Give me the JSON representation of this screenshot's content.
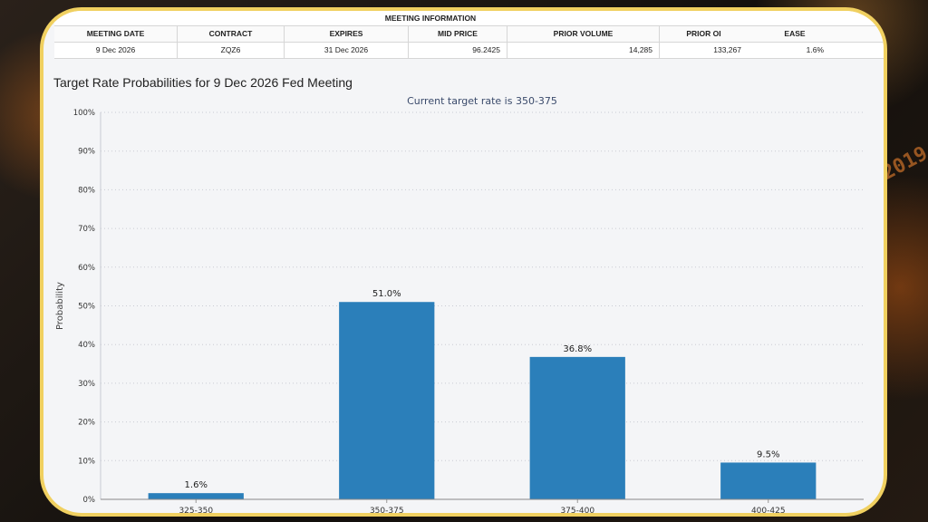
{
  "meeting_info": {
    "title": "MEETING INFORMATION",
    "headers": [
      "MEETING DATE",
      "CONTRACT",
      "EXPIRES",
      "MID PRICE",
      "PRIOR VOLUME",
      "PRIOR OI"
    ],
    "row": [
      "9 Dec 2026",
      "ZQZ6",
      "31 Dec 2026",
      "96.2425",
      "14,285",
      "133,267"
    ]
  },
  "probabilities": {
    "headers": [
      "EASE"
    ],
    "row": [
      "1.6%"
    ]
  },
  "background": {
    "year_text": "2019"
  },
  "chart_data": {
    "type": "bar",
    "title": "Target Rate Probabilities for 9 Dec 2026 Fed Meeting",
    "subtitle": "Current target rate is 350-375",
    "categories": [
      "325-350",
      "350-375",
      "375-400",
      "400-425"
    ],
    "values": [
      1.6,
      51.0,
      36.8,
      9.5
    ],
    "value_labels": [
      "1.6%",
      "51.0%",
      "36.8%",
      "9.5%"
    ],
    "xlabel": "",
    "ylabel": "Probability",
    "ylim": [
      0,
      100
    ],
    "yticks": [
      "0%",
      "10%",
      "20%",
      "30%",
      "40%",
      "50%",
      "60%",
      "70%",
      "80%",
      "90%",
      "100%"
    ],
    "grid": true,
    "bar_color": "#2b7fba"
  }
}
